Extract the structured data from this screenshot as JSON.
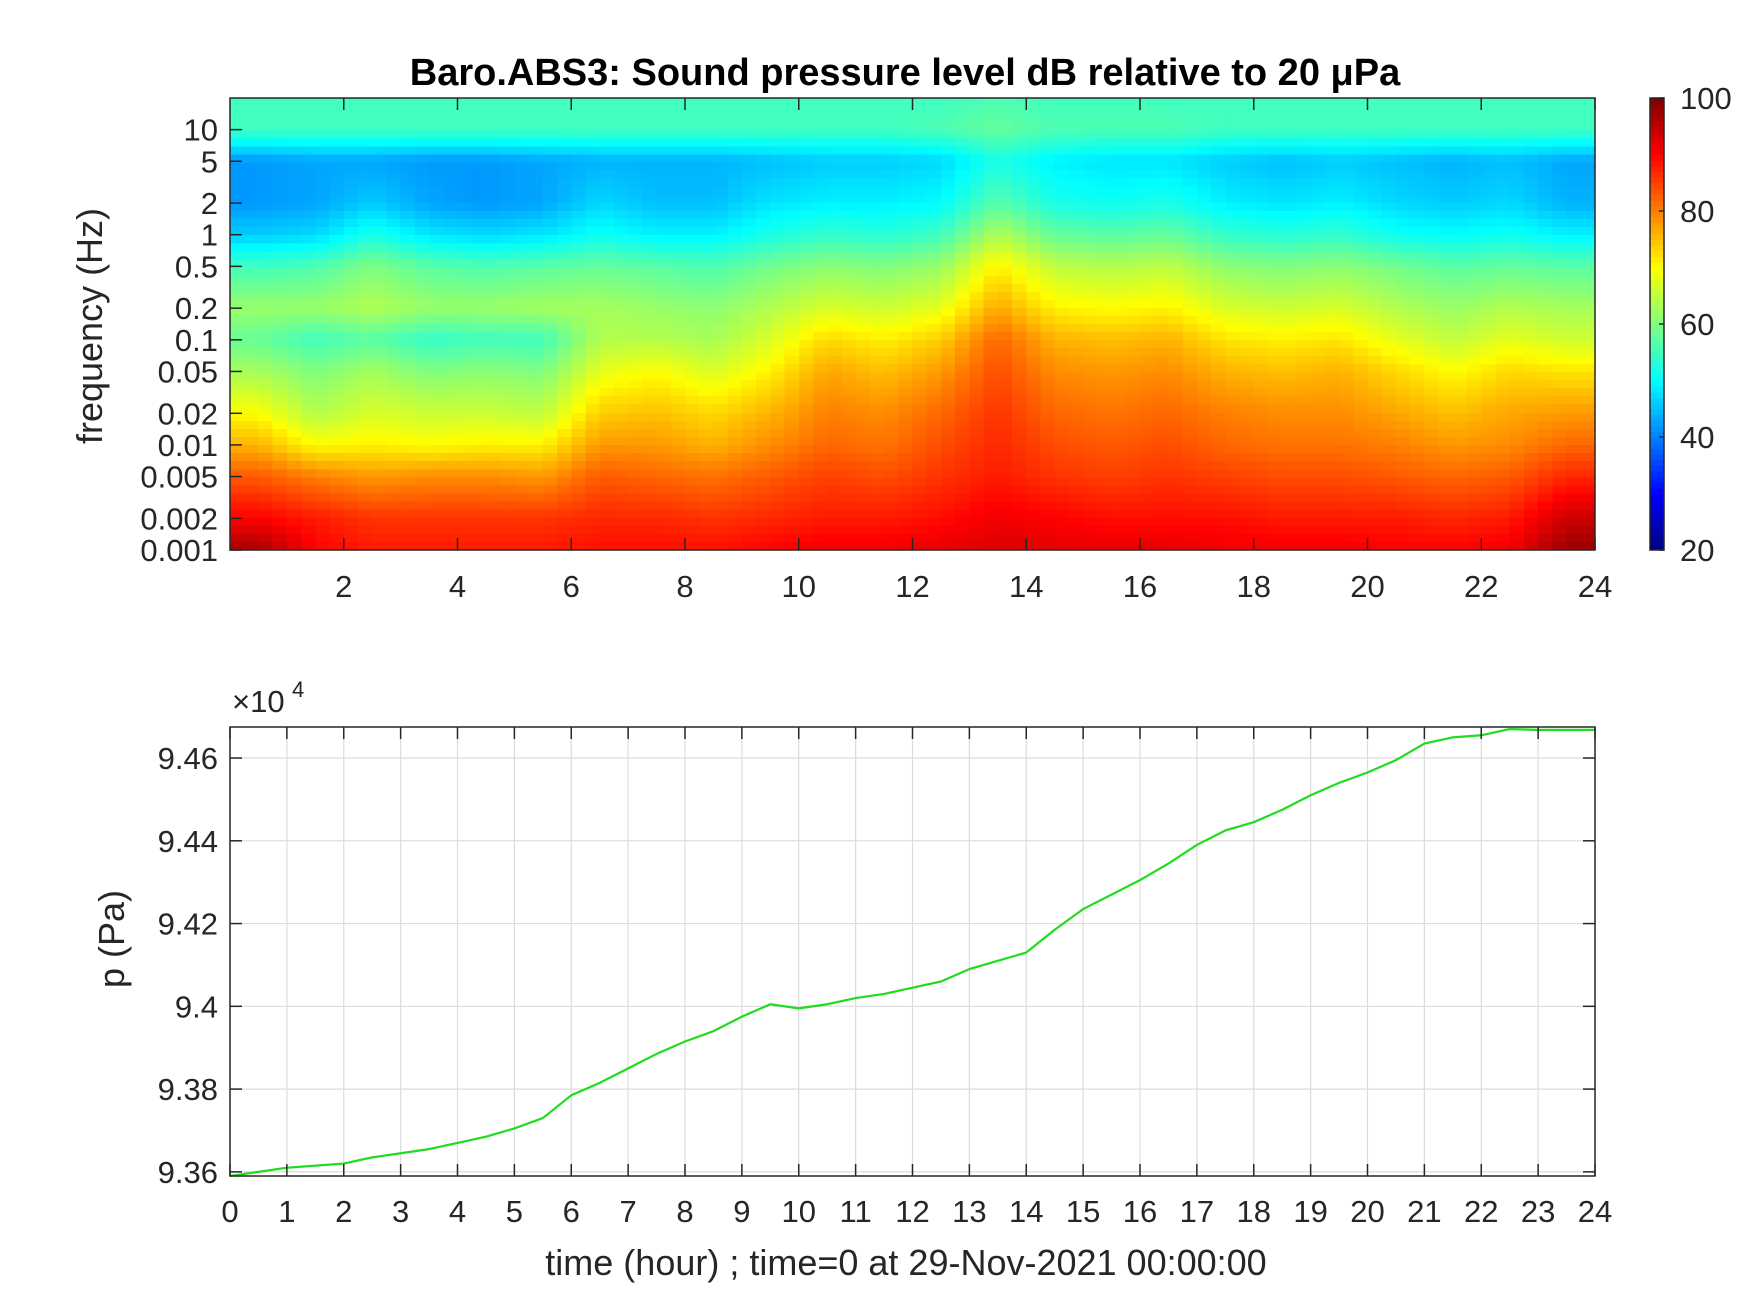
{
  "chart_data": [
    {
      "type": "heatmap",
      "title": "Baro.ABS3: Sound pressure level dB relative to 20 μPa",
      "xlabel": "",
      "ylabel": "frequency (Hz)",
      "x_scale": "linear",
      "y_scale": "log",
      "xlim": [
        0,
        24
      ],
      "ylim": [
        0.001,
        20
      ],
      "x_ticks": [
        2,
        4,
        6,
        8,
        10,
        12,
        14,
        16,
        18,
        20,
        22,
        24
      ],
      "y_ticks": [
        0.001,
        0.002,
        0.005,
        0.01,
        0.02,
        0.05,
        0.1,
        0.2,
        0.5,
        1,
        2,
        5,
        10
      ],
      "y_tick_labels": [
        "0.001",
        "0.002",
        "0.005",
        "0.01",
        "0.02",
        "0.05",
        "0.1",
        "0.2",
        "0.5",
        "1",
        "2",
        "5",
        "10"
      ],
      "colormap": "jet",
      "colorbar": {
        "range": [
          20,
          100
        ],
        "ticks": [
          20,
          40,
          60,
          80,
          100
        ]
      },
      "hours": [
        0.5,
        1.5,
        2.5,
        3.5,
        4.5,
        5.5,
        6.5,
        7.5,
        8.5,
        9.5,
        10.5,
        11.5,
        12.5,
        13.5,
        14.5,
        15.5,
        16.5,
        17.5,
        18.5,
        19.5,
        20.5,
        21.5,
        22.5,
        23.5
      ],
      "frequencies_hz": [
        0.001,
        0.002,
        0.005,
        0.01,
        0.02,
        0.05,
        0.1,
        0.2,
        0.5,
        1,
        2,
        5,
        10,
        20
      ],
      "values_db": [
        [
          97,
          90,
          83,
          76,
          70,
          63,
          58,
          62,
          55,
          46,
          42,
          42,
          55,
          55
        ],
        [
          90,
          88,
          80,
          70,
          64,
          60,
          55,
          62,
          56,
          47,
          43,
          43,
          55,
          55
        ],
        [
          88,
          86,
          78,
          71,
          67,
          63,
          57,
          64,
          60,
          52,
          46,
          43,
          55,
          55
        ],
        [
          88,
          86,
          79,
          70,
          66,
          60,
          54,
          62,
          57,
          48,
          43,
          42,
          55,
          55
        ],
        [
          88,
          86,
          79,
          71,
          66,
          61,
          55,
          62,
          56,
          47,
          42,
          42,
          55,
          55
        ],
        [
          88,
          86,
          78,
          71,
          65,
          60,
          55,
          63,
          57,
          48,
          43,
          43,
          55,
          55
        ],
        [
          89,
          87,
          83,
          78,
          74,
          68,
          64,
          63,
          58,
          51,
          47,
          44,
          55,
          55
        ],
        [
          89,
          87,
          82,
          78,
          75,
          70,
          64,
          62,
          57,
          49,
          45,
          44,
          55,
          55
        ],
        [
          89,
          86,
          81,
          76,
          73,
          67,
          63,
          61,
          56,
          49,
          45,
          44,
          55,
          55
        ],
        [
          90,
          87,
          83,
          79,
          76,
          71,
          67,
          64,
          59,
          52,
          48,
          45,
          55,
          55
        ],
        [
          91,
          88,
          85,
          82,
          80,
          77,
          73,
          67,
          61,
          54,
          49,
          46,
          55,
          55
        ],
        [
          91,
          88,
          84,
          81,
          79,
          75,
          71,
          66,
          60,
          53,
          49,
          46,
          55,
          55
        ],
        [
          92,
          89,
          86,
          84,
          82,
          78,
          74,
          68,
          62,
          55,
          50,
          47,
          56,
          55
        ],
        [
          93,
          91,
          88,
          87,
          86,
          84,
          82,
          77,
          71,
          64,
          57,
          52,
          58,
          56
        ],
        [
          92,
          90,
          86,
          84,
          82,
          79,
          76,
          71,
          65,
          58,
          52,
          49,
          56,
          55
        ],
        [
          92,
          89,
          85,
          83,
          81,
          78,
          75,
          70,
          64,
          57,
          51,
          48,
          56,
          55
        ],
        [
          92,
          89,
          86,
          84,
          82,
          79,
          76,
          71,
          65,
          58,
          52,
          48,
          56,
          55
        ],
        [
          91,
          89,
          85,
          82,
          80,
          76,
          72,
          67,
          61,
          54,
          49,
          46,
          55,
          55
        ],
        [
          91,
          88,
          84,
          81,
          79,
          75,
          71,
          66,
          60,
          53,
          48,
          45,
          55,
          55
        ],
        [
          91,
          88,
          84,
          81,
          79,
          76,
          72,
          67,
          61,
          54,
          49,
          46,
          55,
          55
        ],
        [
          90,
          88,
          83,
          80,
          77,
          73,
          68,
          64,
          59,
          51,
          47,
          45,
          55,
          55
        ],
        [
          90,
          87,
          82,
          78,
          75,
          70,
          65,
          62,
          57,
          50,
          46,
          44,
          55,
          55
        ],
        [
          91,
          88,
          83,
          79,
          77,
          73,
          68,
          64,
          58,
          51,
          47,
          45,
          55,
          55
        ],
        [
          98,
          94,
          87,
          82,
          78,
          72,
          66,
          63,
          57,
          49,
          44,
          43,
          55,
          55
        ]
      ]
    },
    {
      "type": "line",
      "title": "",
      "xlabel": "time (hour) ; time=0 at 29-Nov-2021 00:00:00",
      "ylabel": "p (Pa)",
      "xlim": [
        0,
        24
      ],
      "ylim": [
        93590,
        94675
      ],
      "x_ticks": [
        0,
        1,
        2,
        3,
        4,
        5,
        6,
        7,
        8,
        9,
        10,
        11,
        12,
        13,
        14,
        15,
        16,
        17,
        18,
        19,
        20,
        21,
        22,
        23,
        24
      ],
      "y_ticks": [
        93600,
        93800,
        94000,
        94200,
        94400,
        94600
      ],
      "y_tick_labels": [
        "9.36",
        "9.38",
        "9.4",
        "9.42",
        "9.44",
        "9.46"
      ],
      "y_exponent_label": "×10",
      "y_exponent_power": "4",
      "grid": true,
      "series": [
        {
          "color": "#1fdc1f",
          "x": [
            0,
            0.5,
            1,
            2,
            2.5,
            3,
            3.5,
            4,
            4.5,
            5,
            5.5,
            6,
            6.5,
            7,
            7.5,
            8,
            8.5,
            9,
            9.5,
            10,
            10.5,
            11,
            11.5,
            12,
            12.5,
            13,
            13.5,
            14,
            14.5,
            15,
            15.5,
            16,
            16.5,
            17,
            17.5,
            18,
            18.5,
            19,
            19.5,
            20,
            20.5,
            21,
            21.5,
            22,
            22.5,
            23,
            23.5,
            24
          ],
          "y": [
            93590,
            93600,
            93610,
            93620,
            93635,
            93645,
            93655,
            93670,
            93685,
            93705,
            93730,
            93785,
            93815,
            93850,
            93885,
            93915,
            93940,
            93975,
            94005,
            93995,
            94005,
            94020,
            94030,
            94045,
            94060,
            94090,
            94110,
            94130,
            94185,
            94235,
            94270,
            94305,
            94345,
            94390,
            94425,
            94445,
            94475,
            94510,
            94540,
            94565,
            94595,
            94635,
            94650,
            94655,
            94670,
            94668,
            94668,
            94668
          ]
        }
      ]
    }
  ]
}
